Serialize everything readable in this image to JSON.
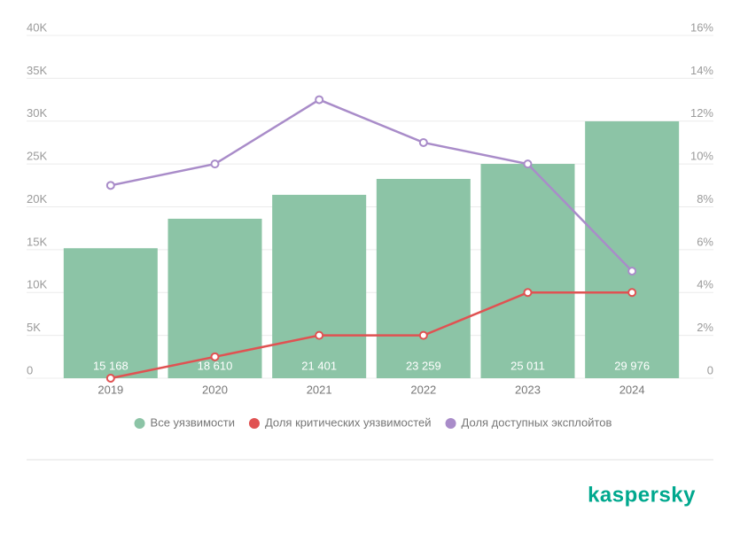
{
  "chart_data": {
    "type": "bar",
    "categories": [
      "2019",
      "2020",
      "2021",
      "2022",
      "2023",
      "2024"
    ],
    "series": [
      {
        "name": "Все уязвимости",
        "type": "bar",
        "color": "#8cc4a6",
        "values": [
          15168,
          18610,
          21401,
          23259,
          25011,
          29976
        ],
        "value_labels": [
          "15 168",
          "18 610",
          "21 401",
          "23 259",
          "25 011",
          "29 976"
        ]
      },
      {
        "name": "Доля критических уязвимостей",
        "type": "line",
        "axis": "y2",
        "color": "#e05252",
        "values": [
          0,
          1,
          2,
          2,
          4,
          4
        ]
      },
      {
        "name": "Доля доступных эксплойтов",
        "type": "line",
        "axis": "y2",
        "color": "#a98cc9",
        "values": [
          9,
          10,
          13,
          11,
          10,
          5
        ]
      }
    ],
    "ylim": [
      0,
      40000
    ],
    "yticks": [
      0,
      {
        "value": 5000,
        "label": "5K"
      },
      {
        "value": 10000,
        "label": "10K"
      },
      {
        "value": 15000,
        "label": "15K"
      },
      {
        "value": 20000,
        "label": "20K"
      },
      {
        "value": 25000,
        "label": "25K"
      },
      {
        "value": 30000,
        "label": "30K"
      },
      {
        "value": 35000,
        "label": "35K"
      },
      {
        "value": 40000,
        "label": "40K"
      }
    ],
    "y2lim": [
      0,
      16
    ],
    "y2ticks": [
      0,
      {
        "value": 2,
        "label": "2%"
      },
      {
        "value": 4,
        "label": "4%"
      },
      {
        "value": 6,
        "label": "6%"
      },
      {
        "value": 8,
        "label": "8%"
      },
      {
        "value": 10,
        "label": "10%"
      },
      {
        "value": 12,
        "label": "12%"
      },
      {
        "value": 14,
        "label": "14%"
      },
      {
        "value": 16,
        "label": "16%"
      }
    ],
    "grid": true,
    "legend": "bottom"
  },
  "brand": "kaspersky"
}
